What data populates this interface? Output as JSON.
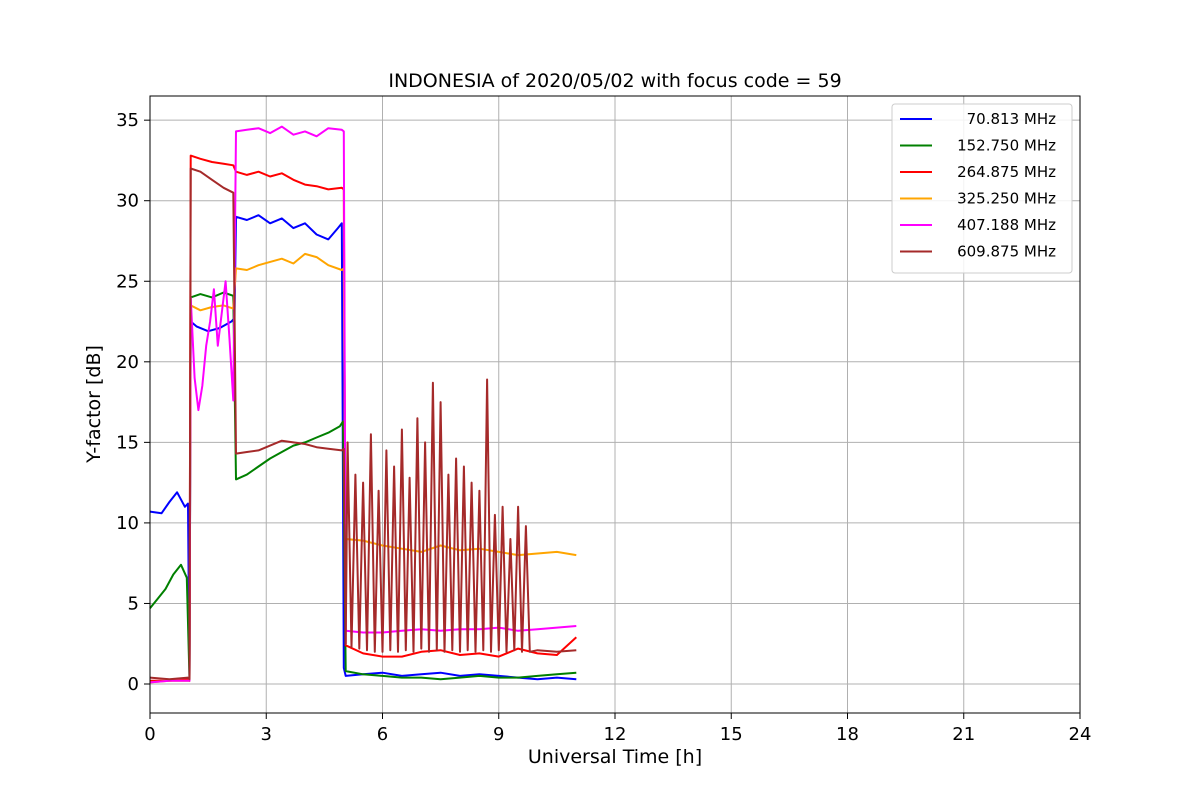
{
  "chart_data": {
    "type": "line",
    "title": "INDONESIA of 2020/05/02 with focus code = 59",
    "xlabel": "Universal Time [h]",
    "ylabel": "Y-factor [dB]",
    "xlim": [
      0,
      24
    ],
    "ylim": [
      -1.8,
      36.5
    ],
    "xticks": [
      0,
      3,
      6,
      9,
      12,
      15,
      18,
      21,
      24
    ],
    "yticks": [
      0,
      5,
      10,
      15,
      20,
      25,
      30,
      35
    ],
    "grid": true,
    "legend_position": "top-right",
    "series": [
      {
        "name": "70.813 MHz",
        "color": "#0000ff",
        "x": [
          0,
          0.3,
          0.5,
          0.7,
          0.9,
          0.98,
          1.02,
          1.05,
          1.2,
          1.5,
          1.8,
          2.1,
          2.18,
          2.22,
          2.5,
          2.8,
          3.1,
          3.4,
          3.7,
          4.0,
          4.3,
          4.6,
          4.85,
          4.95,
          5.0,
          5.05,
          5.5,
          6.0,
          6.5,
          7.0,
          7.5,
          8.0,
          8.5,
          9.0,
          9.5,
          10.0,
          10.5,
          11.0
        ],
        "y": [
          10.7,
          10.6,
          11.3,
          11.9,
          11.0,
          11.2,
          0.2,
          22.5,
          22.2,
          21.9,
          22.1,
          22.5,
          22.7,
          29.0,
          28.8,
          29.1,
          28.6,
          28.9,
          28.3,
          28.6,
          27.9,
          27.6,
          28.3,
          28.6,
          1.0,
          0.5,
          0.6,
          0.7,
          0.5,
          0.6,
          0.7,
          0.5,
          0.6,
          0.5,
          0.4,
          0.3,
          0.4,
          0.3
        ]
      },
      {
        "name": "152.750 MHz",
        "color": "#008000",
        "x": [
          0,
          0.2,
          0.4,
          0.6,
          0.8,
          0.95,
          1.02,
          1.05,
          1.3,
          1.6,
          1.9,
          2.15,
          2.22,
          2.5,
          2.8,
          3.1,
          3.4,
          3.7,
          4.0,
          4.3,
          4.6,
          4.9,
          4.98,
          5.05,
          5.5,
          6.0,
          6.5,
          7.0,
          7.5,
          8.0,
          8.5,
          9.0,
          9.5,
          10.0,
          10.5,
          11.0
        ],
        "y": [
          4.7,
          5.3,
          5.9,
          6.8,
          7.4,
          6.6,
          0.3,
          24.0,
          24.2,
          24.0,
          24.3,
          24.1,
          12.7,
          13.0,
          13.5,
          14.0,
          14.4,
          14.8,
          15.0,
          15.3,
          15.6,
          16.0,
          16.3,
          0.8,
          0.6,
          0.5,
          0.4,
          0.4,
          0.3,
          0.4,
          0.5,
          0.4,
          0.4,
          0.5,
          0.6,
          0.7
        ]
      },
      {
        "name": "264.875 MHz",
        "color": "#ff0000",
        "x": [
          0,
          0.5,
          0.98,
          1.02,
          1.05,
          1.3,
          1.6,
          1.9,
          2.15,
          2.22,
          2.5,
          2.8,
          3.1,
          3.4,
          3.7,
          4.0,
          4.3,
          4.6,
          4.95,
          5.0,
          5.05,
          5.5,
          6.0,
          6.5,
          7.0,
          7.5,
          8.0,
          8.5,
          9.0,
          9.5,
          10.0,
          10.5,
          11.0
        ],
        "y": [
          0.2,
          0.2,
          0.3,
          0.2,
          32.8,
          32.6,
          32.4,
          32.3,
          32.2,
          31.8,
          31.6,
          31.8,
          31.5,
          31.7,
          31.3,
          31.0,
          30.9,
          30.7,
          30.8,
          30.7,
          2.4,
          1.9,
          1.7,
          1.7,
          2.0,
          2.1,
          1.8,
          1.9,
          1.7,
          2.2,
          1.9,
          1.8,
          2.9
        ]
      },
      {
        "name": "325.250 MHz",
        "color": "#ffa500",
        "x": [
          0,
          0.5,
          0.98,
          1.02,
          1.05,
          1.3,
          1.6,
          1.9,
          2.15,
          2.22,
          2.5,
          2.8,
          3.1,
          3.4,
          3.7,
          4.0,
          4.3,
          4.6,
          4.95,
          5.0,
          5.05,
          5.5,
          6.0,
          6.5,
          7.0,
          7.5,
          8.0,
          8.5,
          9.0,
          9.5,
          10.0,
          10.5,
          11.0
        ],
        "y": [
          0.1,
          0.2,
          0.2,
          0.2,
          23.5,
          23.2,
          23.4,
          23.5,
          23.3,
          25.8,
          25.7,
          26.0,
          26.2,
          26.4,
          26.1,
          26.7,
          26.5,
          26.0,
          25.7,
          25.8,
          9.0,
          8.9,
          8.6,
          8.4,
          8.2,
          8.6,
          8.3,
          8.4,
          8.2,
          8.0,
          8.1,
          8.2,
          8.0
        ]
      },
      {
        "name": "407.188 MHz",
        "color": "#ff00ff",
        "x": [
          0,
          0.5,
          0.98,
          1.02,
          1.05,
          1.15,
          1.25,
          1.35,
          1.45,
          1.55,
          1.65,
          1.75,
          1.85,
          1.95,
          2.05,
          2.15,
          2.22,
          2.5,
          2.8,
          3.1,
          3.4,
          3.7,
          4.0,
          4.3,
          4.6,
          4.95,
          5.0,
          5.05,
          5.5,
          6.0,
          6.5,
          7.0,
          7.5,
          8.0,
          8.5,
          9.0,
          9.5,
          10.0,
          10.5,
          11.0
        ],
        "y": [
          0.1,
          0.2,
          0.2,
          0.2,
          24.0,
          19.0,
          17.0,
          18.5,
          21.0,
          22.5,
          24.5,
          21.0,
          23.0,
          25.0,
          21.5,
          17.6,
          34.3,
          34.4,
          34.5,
          34.2,
          34.6,
          34.1,
          34.3,
          34.0,
          34.5,
          34.4,
          34.3,
          3.3,
          3.2,
          3.2,
          3.3,
          3.4,
          3.3,
          3.4,
          3.4,
          3.5,
          3.3,
          3.4,
          3.5,
          3.6
        ]
      },
      {
        "name": "609.875 MHz",
        "color": "#a52a2a",
        "x": [
          0,
          0.5,
          0.98,
          1.02,
          1.05,
          1.3,
          1.6,
          1.9,
          2.15,
          2.22,
          2.5,
          2.8,
          3.1,
          3.4,
          3.7,
          4.0,
          4.3,
          4.6,
          4.95,
          5.0,
          5.05,
          5.1,
          5.2,
          5.3,
          5.4,
          5.5,
          5.6,
          5.7,
          5.8,
          5.9,
          6.0,
          6.1,
          6.2,
          6.3,
          6.4,
          6.5,
          6.6,
          6.7,
          6.8,
          6.9,
          7.0,
          7.1,
          7.2,
          7.3,
          7.4,
          7.5,
          7.6,
          7.7,
          7.8,
          7.9,
          8.0,
          8.1,
          8.2,
          8.3,
          8.4,
          8.5,
          8.6,
          8.7,
          8.8,
          8.9,
          9.0,
          9.1,
          9.2,
          9.3,
          9.4,
          9.5,
          9.6,
          9.7,
          9.8,
          10.0,
          10.5,
          11.0
        ],
        "y": [
          0.4,
          0.3,
          0.4,
          0.3,
          32.0,
          31.8,
          31.3,
          30.8,
          30.5,
          14.3,
          14.4,
          14.5,
          14.8,
          15.1,
          15.0,
          14.9,
          14.7,
          14.6,
          14.5,
          14.6,
          2.5,
          15.0,
          2.3,
          13.0,
          2.2,
          12.5,
          2.1,
          15.5,
          2.0,
          12.0,
          2.0,
          14.5,
          2.1,
          13.5,
          2.0,
          15.8,
          2.1,
          12.8,
          2.0,
          16.5,
          2.2,
          15.0,
          2.0,
          18.7,
          2.1,
          17.5,
          2.0,
          13.0,
          2.1,
          14.0,
          2.0,
          13.5,
          2.1,
          12.5,
          2.0,
          12.0,
          2.1,
          18.9,
          2.0,
          10.5,
          2.1,
          11.0,
          2.0,
          9.0,
          2.1,
          11.0,
          2.0,
          9.8,
          2.0,
          2.1,
          2.0,
          2.1
        ]
      }
    ]
  }
}
